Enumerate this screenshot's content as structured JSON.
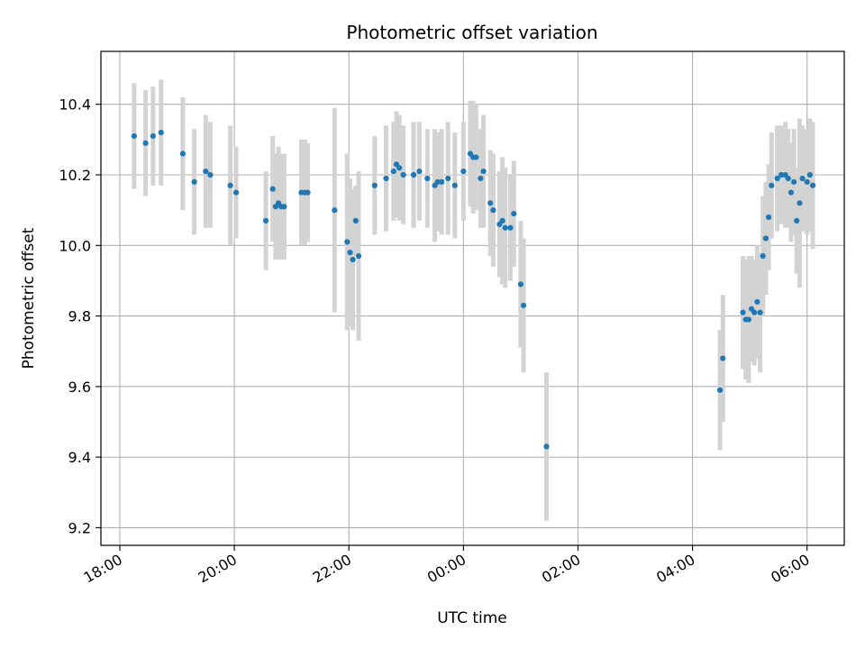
{
  "chart_data": {
    "type": "scatter",
    "title": "Photometric offset variation",
    "xlabel": "UTC time",
    "ylabel": "Photometric offset",
    "x_unit": "hours since 18:00 UTC",
    "xlim": [
      -0.33,
      12.65
    ],
    "ylim": [
      9.15,
      10.55
    ],
    "x_ticks": [
      0,
      2,
      4,
      6,
      8,
      10,
      12
    ],
    "x_tick_labels": [
      "18:00",
      "20:00",
      "22:00",
      "00:00",
      "02:00",
      "04:00",
      "06:00"
    ],
    "y_ticks": [
      9.2,
      9.4,
      9.6,
      9.8,
      10.0,
      10.2,
      10.4
    ],
    "y_tick_labels": [
      "9.2",
      "9.4",
      "9.6",
      "9.8",
      "10.0",
      "10.2",
      "10.4"
    ],
    "grid": true,
    "legend": false,
    "colors": {
      "point": "#1f77b4",
      "errorbar": "#d3d3d3",
      "grid": "#b0b0b0"
    },
    "series": [
      {
        "name": "",
        "x": [
          0.25,
          0.45,
          0.58,
          0.72,
          1.1,
          1.3,
          1.5,
          1.58,
          1.93,
          2.03,
          2.55,
          2.67,
          2.72,
          2.77,
          2.82,
          2.87,
          3.17,
          3.23,
          3.28,
          3.75,
          3.97,
          4.02,
          4.07,
          4.12,
          4.17,
          4.45,
          4.65,
          4.78,
          4.83,
          4.88,
          4.95,
          5.13,
          5.23,
          5.37,
          5.5,
          5.55,
          5.62,
          5.73,
          5.85,
          6.0,
          6.12,
          6.17,
          6.22,
          6.3,
          6.35,
          6.47,
          6.52,
          6.63,
          6.68,
          6.73,
          6.82,
          6.88,
          7.0,
          7.05,
          7.45,
          10.48,
          10.53,
          10.88,
          10.93,
          10.98,
          11.03,
          11.08,
          11.13,
          11.18,
          11.23,
          11.28,
          11.33,
          11.38,
          11.48,
          11.55,
          11.62,
          11.67,
          11.72,
          11.77,
          11.82,
          11.87,
          11.92,
          12.0,
          12.05,
          12.1
        ]
      }
    ],
    "points_y": [
      10.31,
      10.29,
      10.31,
      10.32,
      10.26,
      10.18,
      10.21,
      10.2,
      10.17,
      10.15,
      10.07,
      10.16,
      10.11,
      10.12,
      10.11,
      10.11,
      10.15,
      10.15,
      10.15,
      10.1,
      10.01,
      9.98,
      9.96,
      10.07,
      9.97,
      10.17,
      10.19,
      10.21,
      10.23,
      10.22,
      10.2,
      10.2,
      10.21,
      10.19,
      10.17,
      10.18,
      10.18,
      10.19,
      10.17,
      10.21,
      10.26,
      10.25,
      10.25,
      10.19,
      10.21,
      10.12,
      10.1,
      10.06,
      10.07,
      10.05,
      10.05,
      10.09,
      9.89,
      9.83,
      9.43,
      9.59,
      9.68,
      9.81,
      9.79,
      9.79,
      9.82,
      9.81,
      9.84,
      9.81,
      9.97,
      10.02,
      10.08,
      10.17,
      10.19,
      10.2,
      10.2,
      10.19,
      10.15,
      10.18,
      10.07,
      10.12,
      10.19,
      10.18,
      10.2,
      10.17
    ],
    "errors": [
      0.15,
      0.15,
      0.14,
      0.15,
      0.16,
      0.15,
      0.16,
      0.15,
      0.17,
      0.13,
      0.14,
      0.15,
      0.15,
      0.16,
      0.15,
      0.15,
      0.15,
      0.15,
      0.14,
      0.29,
      0.25,
      0.21,
      0.2,
      0.1,
      0.24,
      0.14,
      0.15,
      0.14,
      0.15,
      0.15,
      0.14,
      0.15,
      0.14,
      0.14,
      0.16,
      0.14,
      0.15,
      0.16,
      0.15,
      0.14,
      0.15,
      0.16,
      0.15,
      0.14,
      0.16,
      0.15,
      0.16,
      0.15,
      0.18,
      0.17,
      0.15,
      0.15,
      0.18,
      0.19,
      0.21,
      0.17,
      0.18,
      0.16,
      0.17,
      0.18,
      0.15,
      0.15,
      0.16,
      0.17,
      0.17,
      0.16,
      0.15,
      0.15,
      0.15,
      0.14,
      0.15,
      0.14,
      0.14,
      0.15,
      0.15,
      0.24,
      0.15,
      0.15,
      0.16,
      0.18
    ]
  }
}
